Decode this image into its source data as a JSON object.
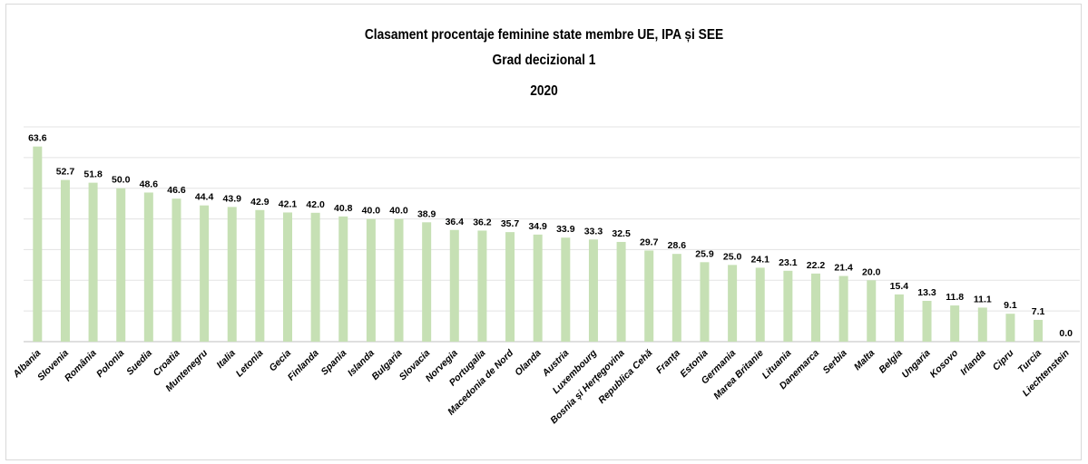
{
  "chart_data": {
    "type": "bar",
    "title": [
      "Clasament procentaje feminine state membre UE, IPA și SEE",
      "Grad decizional 1",
      "2020"
    ],
    "xlabel": "",
    "ylabel": "",
    "ylim": [
      0,
      70
    ],
    "grid": true,
    "legend": "none",
    "bar_color": "#c6e0b4",
    "categories": [
      "Albania",
      "Slovenia",
      "România",
      "Polonia",
      "Suedia",
      "Croatia",
      "Muntenegru",
      "Italia",
      "Letonia",
      "Gecia",
      "Finlanda",
      "Spania",
      "Islanda",
      "Bulgaria",
      "Slovacia",
      "Norvegia",
      "Portugalia",
      "Macedonia de Nord",
      "Olanda",
      "Austria",
      "Luxembourg",
      "Bosnia și Herțegovina",
      "Republica Cehă",
      "Franța",
      "Estonia",
      "Germania",
      "Marea Britanie",
      "Lituania",
      "Danemarca",
      "Serbia",
      "Malta",
      "Belgia",
      "Ungaria",
      "Kosovo",
      "Irlanda",
      "Cipru",
      "Turcia",
      "Liechtenstein"
    ],
    "values": [
      63.6,
      52.7,
      51.8,
      50.0,
      48.6,
      46.6,
      44.4,
      43.9,
      42.9,
      42.1,
      42.0,
      40.8,
      40.0,
      40.0,
      38.9,
      36.4,
      36.2,
      35.7,
      34.9,
      33.9,
      33.3,
      32.5,
      29.7,
      28.6,
      25.9,
      25.0,
      24.1,
      23.1,
      22.2,
      21.4,
      20.0,
      15.4,
      13.3,
      11.8,
      11.1,
      9.1,
      7.1,
      0.0
    ],
    "value_labels": [
      "63.6",
      "52.7",
      "51.8",
      "50.0",
      "48.6",
      "46.6",
      "44.4",
      "43.9",
      "42.9",
      "42.1",
      "42.0",
      "40.8",
      "40.0",
      "40.0",
      "38.9",
      "36.4",
      "36.2",
      "35.7",
      "34.9",
      "33.9",
      "33.3",
      "32.5",
      "29.7",
      "28.6",
      "25.9",
      "25.0",
      "24.1",
      "23.1",
      "22.2",
      "21.4",
      "20.0",
      "15.4",
      "13.3",
      "11.8",
      "11.1",
      "9.1",
      "7.1",
      "0.0"
    ]
  }
}
